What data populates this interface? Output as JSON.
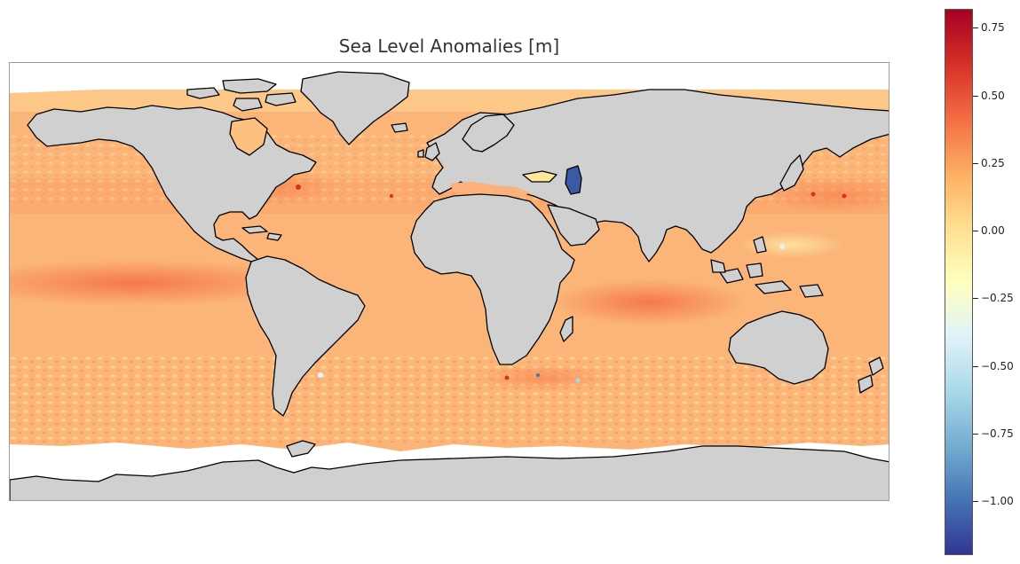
{
  "map": {
    "title": "Sea Level Anomalies [m]",
    "projection": "equirectangular",
    "land_color": "#d0d0d0",
    "coastline_color": "#000000",
    "missing_data_color": "#ffffff"
  },
  "colorbar": {
    "colormap": "RdYlBu_r",
    "min": -1.2,
    "max": 0.82,
    "ticks": [
      {
        "value": 0.75,
        "label": "0.75"
      },
      {
        "value": 0.5,
        "label": "0.50"
      },
      {
        "value": 0.25,
        "label": "0.25"
      },
      {
        "value": 0.0,
        "label": "0.00"
      },
      {
        "value": -0.25,
        "label": "−0.25"
      },
      {
        "value": -0.5,
        "label": "−0.50"
      },
      {
        "value": -0.75,
        "label": "−0.75"
      },
      {
        "value": -1.0,
        "label": "−1.00"
      }
    ],
    "stops": [
      "#313695",
      "#4575b4",
      "#74add1",
      "#abd9e9",
      "#e0f3f8",
      "#ffffbf",
      "#fee090",
      "#fdae61",
      "#f46d43",
      "#d73027",
      "#a50026"
    ]
  }
}
